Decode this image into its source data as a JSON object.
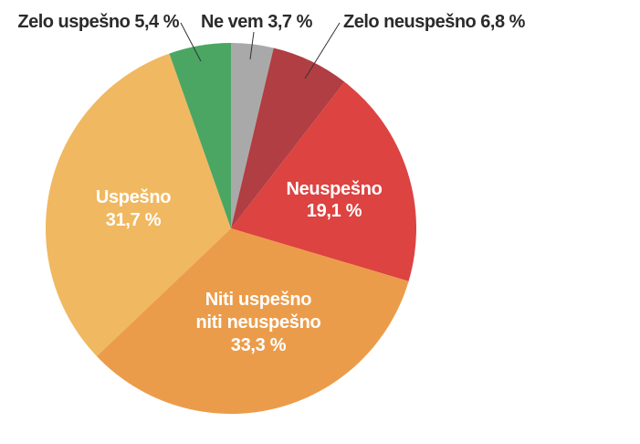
{
  "chart_data": {
    "type": "pie",
    "start_angle": "12 o'clock",
    "direction": "clockwise",
    "slices": [
      {
        "label": "Ne vem",
        "value": 3.7,
        "display": "Ne vem 3,7 %",
        "color": "#a9a9a9",
        "label_position": "outside"
      },
      {
        "label": "Zelo neuspešno",
        "value": 6.8,
        "display": "Zelo neuspešno 6,8 %",
        "color": "#b03e42",
        "label_position": "outside"
      },
      {
        "label": "Neuspešno",
        "value": 19.1,
        "display_lines": [
          "Neuspešno",
          "19,1 %"
        ],
        "color": "#dc4341",
        "label_position": "inside"
      },
      {
        "label": "Niti uspešno niti neuspešno",
        "value": 33.3,
        "display_lines": [
          "Niti uspešno",
          "niti neuspešno",
          "33,3 %"
        ],
        "color": "#eb9c4a",
        "label_position": "inside"
      },
      {
        "label": "Uspešno",
        "value": 31.7,
        "display_lines": [
          "Uspešno",
          "31,7 %"
        ],
        "color": "#f0b861",
        "label_position": "inside"
      },
      {
        "label": "Zelo uspešno",
        "value": 5.4,
        "display": "Zelo uspešno 5,4 %",
        "color": "#4ba663",
        "label_position": "outside"
      }
    ]
  }
}
